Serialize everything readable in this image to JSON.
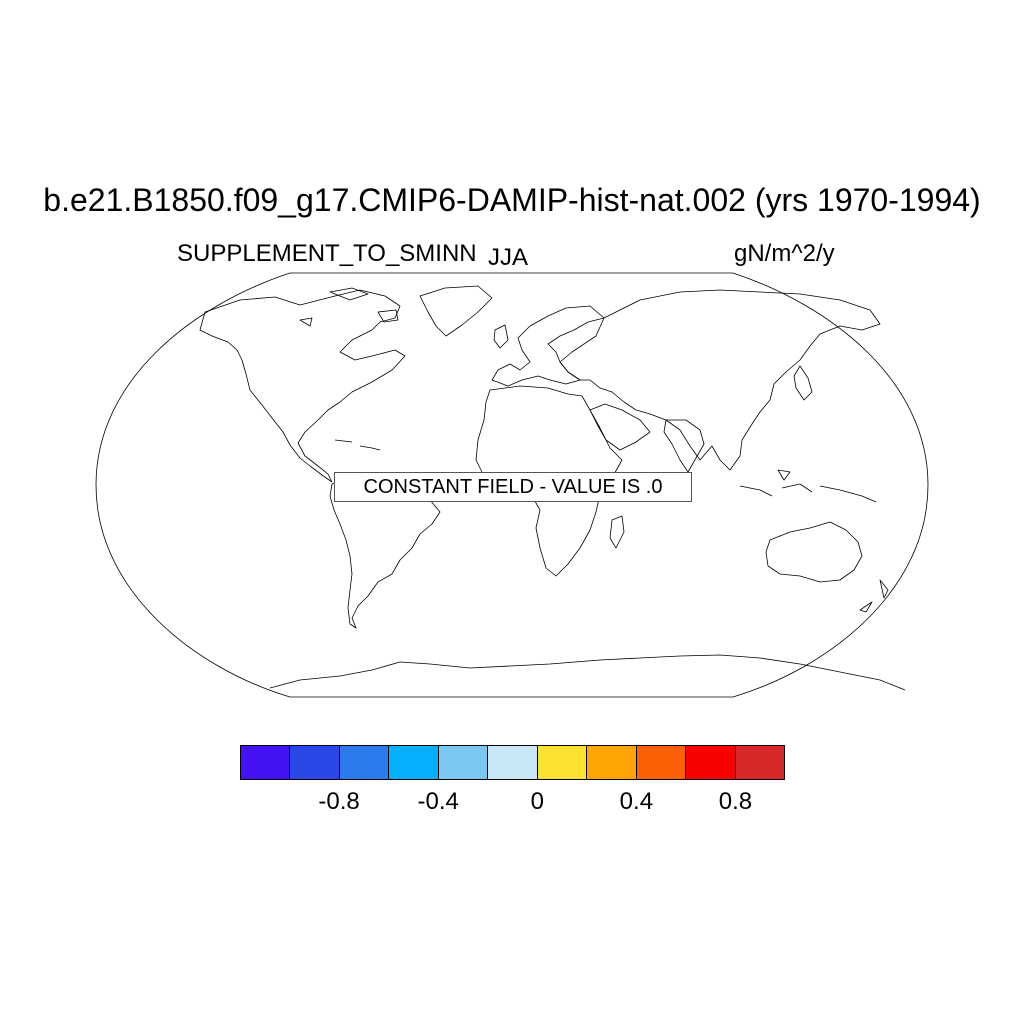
{
  "title": "b.e21.B1850.f09_g17.CMIP6-DAMIP-hist-nat.002 (yrs 1970-1994)",
  "left_string": "SUPPLEMENT_TO_SMINN",
  "center_string": "JJA",
  "right_string": "gN/m^2/y",
  "notice": "CONSTANT FIELD - VALUE IS .0",
  "colorbar": {
    "colors": [
      "#4412f4",
      "#2b47e8",
      "#2b7bef",
      "#04b0fb",
      "#7ac8f0",
      "#c9e7f7",
      "#fee232",
      "#fea405",
      "#fd6004",
      "#f90101",
      "#d8282a"
    ],
    "labels": [
      "-0.8",
      "-0.4",
      "0",
      "0.4",
      "0.8"
    ]
  },
  "map": {
    "projection": "Robinson",
    "coastlines": true
  }
}
